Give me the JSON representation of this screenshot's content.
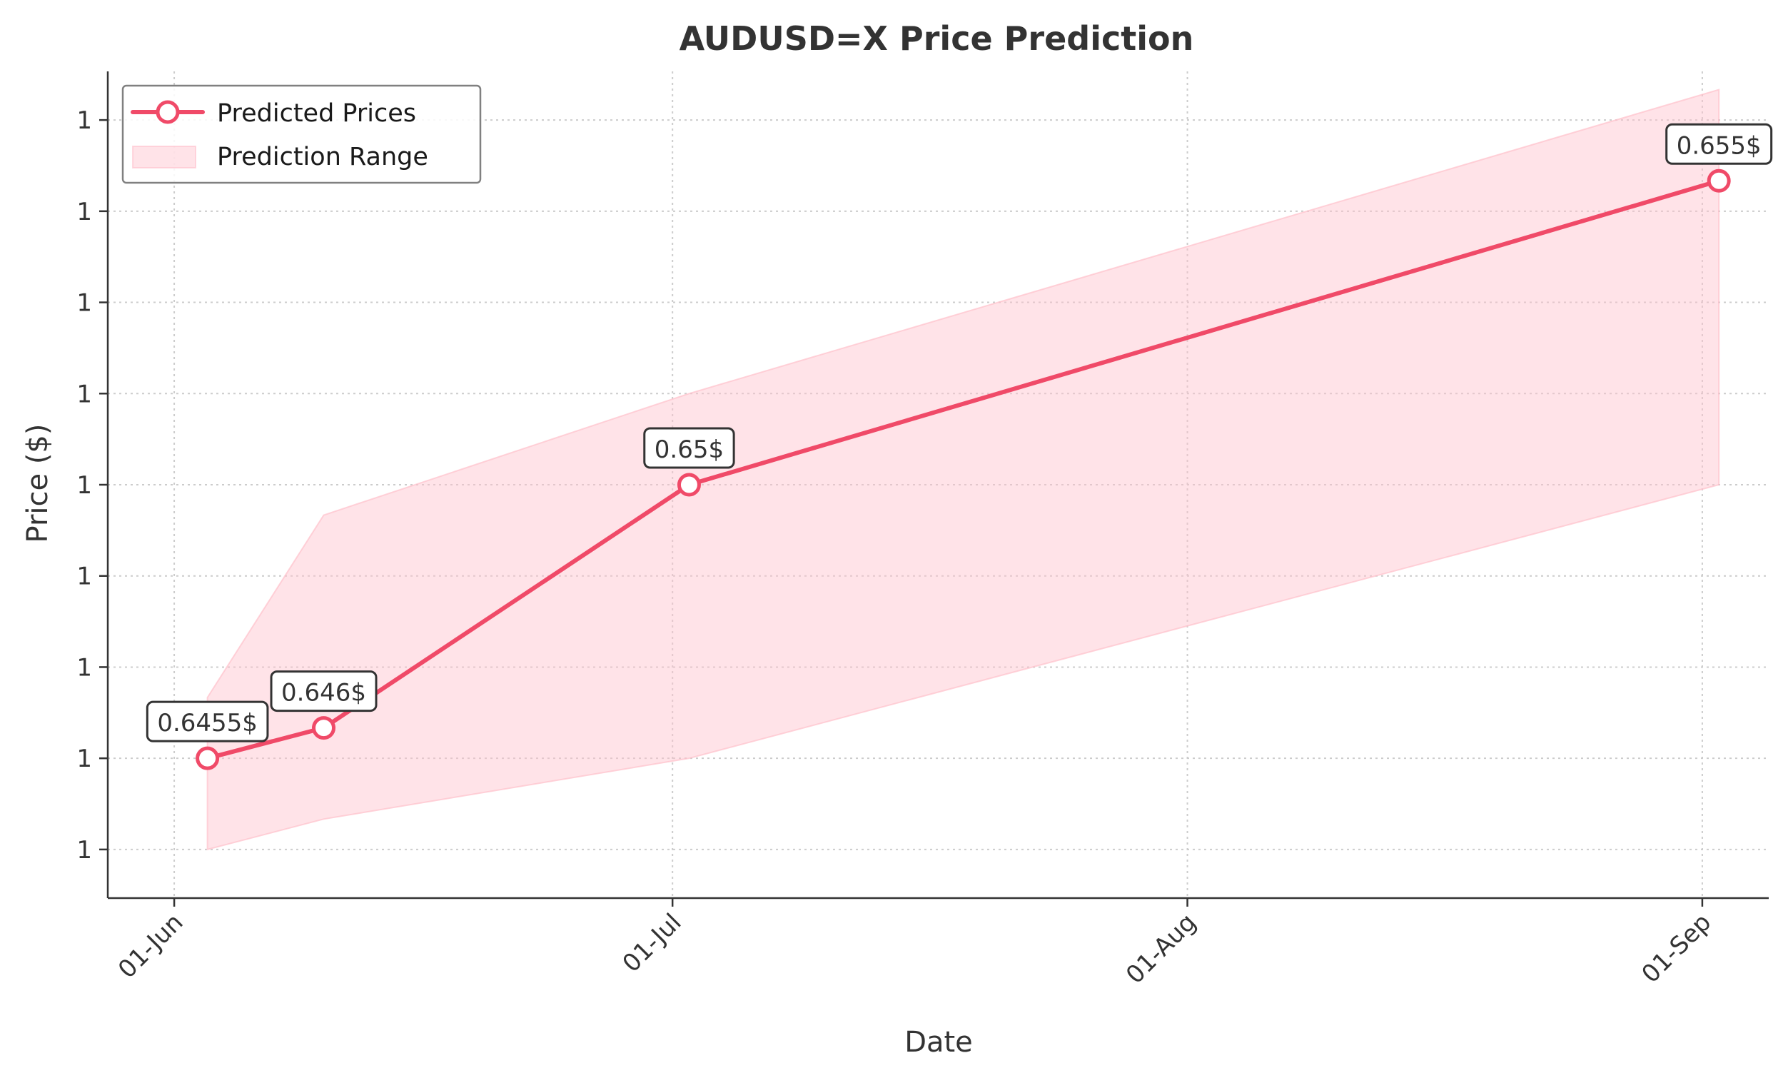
{
  "chart_data": {
    "type": "line",
    "title": "AUDUSD=X Price Prediction",
    "xlabel": "Date",
    "ylabel": "Price ($)",
    "x_tick_labels": [
      "01-Jun",
      "01-Jul",
      "01-Aug",
      "01-Sep"
    ],
    "y_tick_labels": [
      "1",
      "1",
      "1",
      "1",
      "1",
      "1",
      "1",
      "1",
      "1"
    ],
    "grid": true,
    "legend_position": "top-left",
    "series": [
      {
        "name": "Predicted Prices",
        "color": "#f04a68",
        "points": [
          {
            "x": "2024-06-03",
            "y": 0.6455,
            "label": "0.6455$"
          },
          {
            "x": "2024-06-10",
            "y": 0.646,
            "label": "0.646$"
          },
          {
            "x": "2024-07-02",
            "y": 0.65,
            "label": "0.65$"
          },
          {
            "x": "2024-09-02",
            "y": 0.655,
            "label": "0.655$"
          }
        ]
      }
    ],
    "range": {
      "name": "Prediction Range",
      "color": "#ffc0cb",
      "x": [
        "2024-06-03",
        "2024-06-10",
        "2024-07-02",
        "2024-09-02"
      ],
      "upper": [
        0.6465,
        0.6495,
        0.6515,
        0.6565
      ],
      "lower": [
        0.644,
        0.6445,
        0.6455,
        0.65
      ]
    },
    "xlim": [
      "2024-05-28",
      "2024-09-05"
    ],
    "ylim": [
      0.6432,
      0.6568
    ]
  }
}
